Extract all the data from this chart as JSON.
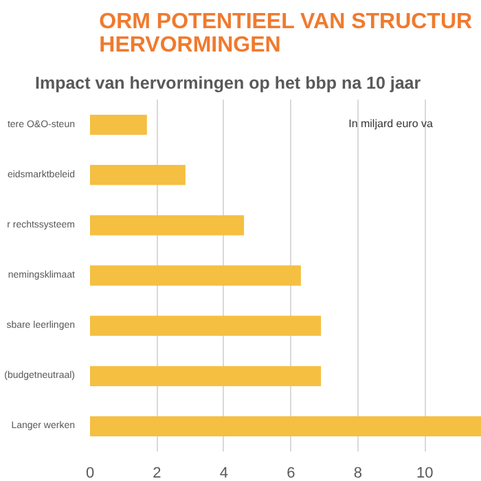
{
  "chart_data": {
    "type": "bar",
    "orientation": "horizontal",
    "title": "ORM POTENTIEEL VAN STRUCTUR\nHERVORMINGEN",
    "subtitle": "Impact van hervormingen op het bbp na 10 jaar",
    "categories": [
      "tere O&O-steun",
      "eidsmarktbeleid",
      "r rechtssysteem",
      "nemingsklimaat",
      "sbare leerlingen",
      "(budgetneutraal)",
      "Langer werken"
    ],
    "values": [
      1.7,
      2.85,
      4.6,
      6.3,
      6.9,
      6.9,
      11.7
    ],
    "color": "#f5bf42",
    "xlim": [
      0,
      11.7
    ],
    "xticks": [
      0,
      2,
      4,
      6,
      8,
      10
    ],
    "grid": "x",
    "annotations": [
      "In miljard euro va"
    ]
  }
}
